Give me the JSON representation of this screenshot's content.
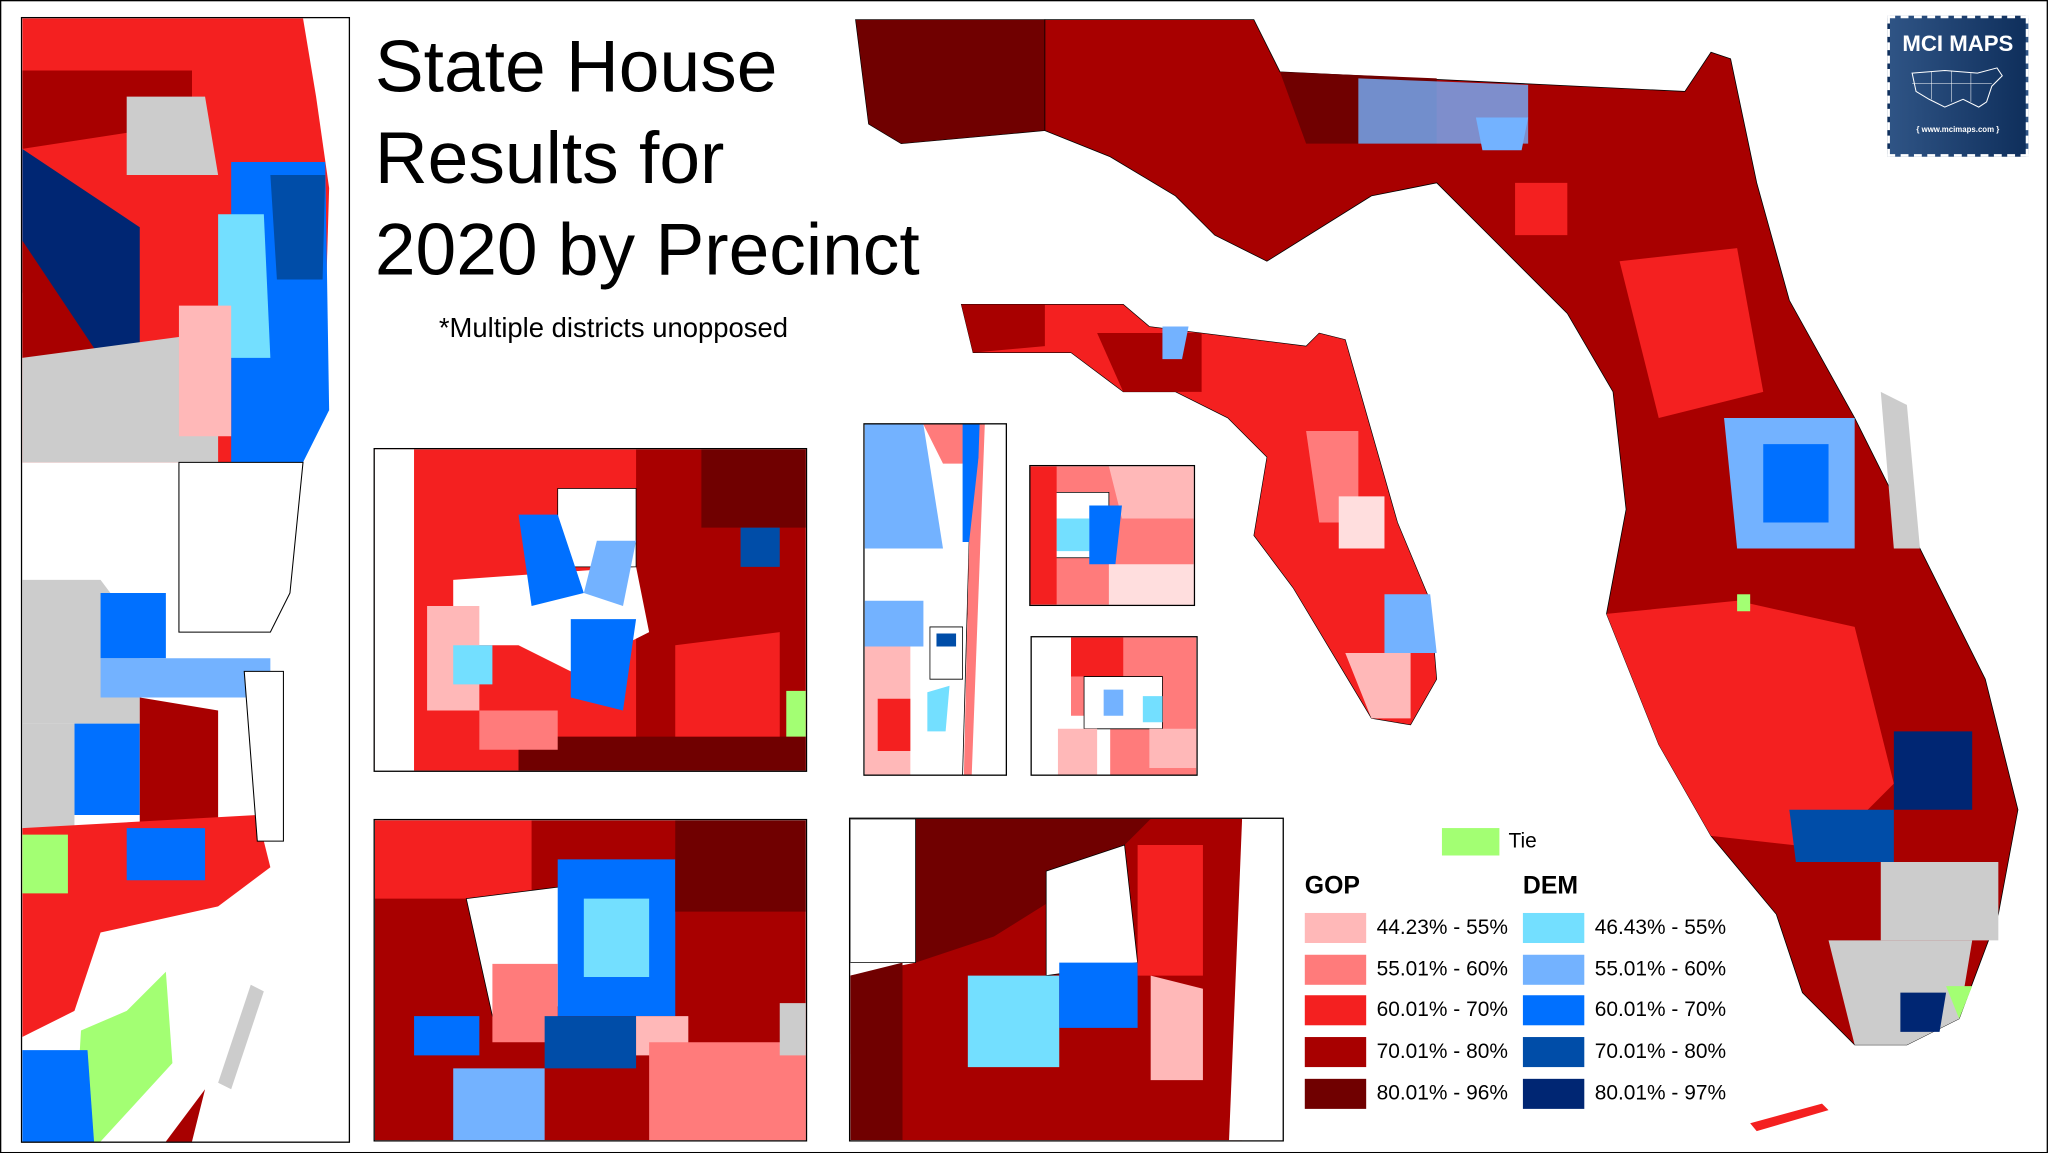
{
  "title": "State House\nResults for\n2020 by Precinct",
  "subtitle": "*Multiple districts unopposed",
  "logo": {
    "name": "MCI MAPS",
    "url": "www.mcimaps.com"
  },
  "legend": {
    "tie": {
      "label": "Tie",
      "color": "#a3ff73"
    },
    "gop": {
      "heading": "GOP",
      "items": [
        {
          "label": "44.23% - 55%",
          "color": "#ffb8b8"
        },
        {
          "label": "55.01% - 60%",
          "color": "#ff7b7b"
        },
        {
          "label": "60.01% - 70%",
          "color": "#f42020"
        },
        {
          "label": "70.01% - 80%",
          "color": "#a80000"
        },
        {
          "label": "80.01% - 96%",
          "color": "#700000"
        }
      ]
    },
    "dem": {
      "heading": "DEM",
      "items": [
        {
          "label": "46.43% - 55%",
          "color": "#73dfff"
        },
        {
          "label": "55.01% - 60%",
          "color": "#73b2ff"
        },
        {
          "label": "60.01% - 70%",
          "color": "#0070ff"
        },
        {
          "label": "70.01% - 80%",
          "color": "#004da8"
        },
        {
          "label": "80.01% - 97%",
          "color": "#002673"
        }
      ]
    },
    "no_data_color": "#cccccc"
  }
}
